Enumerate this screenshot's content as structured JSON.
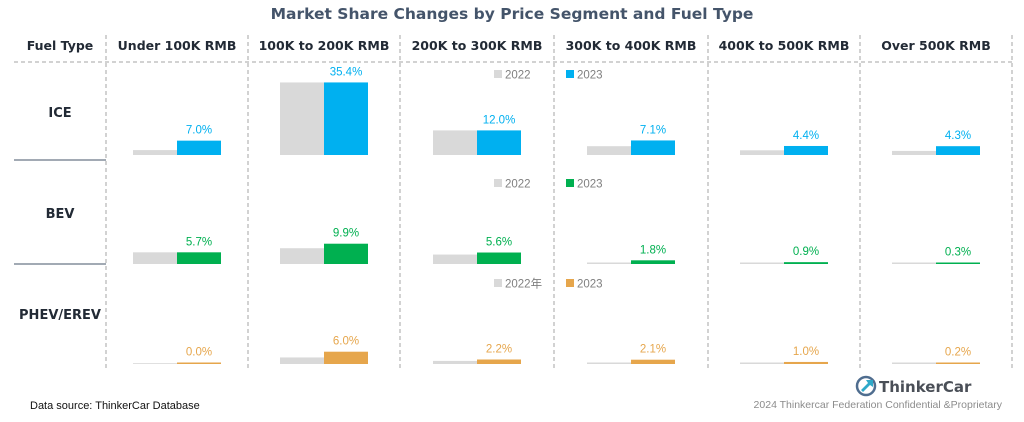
{
  "title": "Market Share Changes by Price Segment and Fuel Type",
  "source": "Data source: ThinkerCar Database",
  "brand": {
    "name": "ThinkerCar",
    "copyright": "2024 Thinkercar Federation Confidential &Proprietary",
    "logo_icon": "thinkercar-logo-icon"
  },
  "colors": {
    "y2022": "#d9d9d9",
    "ICE": "#00b0f0",
    "BEV": "#00b050",
    "PHEV/EREV": "#e6a64c",
    "grid": "#a6a6a6"
  },
  "chart_data": {
    "type": "bar",
    "row_header": "Fuel Type",
    "segments": [
      "Under 100K RMB",
      "100K to 200K RMB",
      "200K to 300K RMB",
      "300K to 400K RMB",
      "400K to 500K RMB",
      "Over 500K RMB"
    ],
    "rows": [
      {
        "fuel": "ICE",
        "legend": [
          "2022",
          "2023"
        ],
        "values_2022": [
          2.4,
          35.4,
          12.0,
          4.3,
          2.3,
          2.0
        ],
        "values_2023": [
          7.0,
          35.4,
          12.0,
          7.1,
          4.4,
          4.3
        ],
        "labels_2023": [
          "7.0%",
          "35.4%",
          "12.0%",
          "7.1%",
          "4.4%",
          "4.3%"
        ]
      },
      {
        "fuel": "BEV",
        "legend": [
          "2022",
          "2023"
        ],
        "values_2022": [
          5.7,
          7.7,
          4.6,
          0.5,
          0.3,
          0.1
        ],
        "values_2023": [
          5.7,
          9.9,
          5.6,
          1.8,
          0.9,
          0.3
        ],
        "labels_2023": [
          "5.7%",
          "9.9%",
          "5.6%",
          "1.8%",
          "0.9%",
          "0.3%"
        ]
      },
      {
        "fuel": "PHEV/EREV",
        "legend": [
          "2022年",
          "2023"
        ],
        "values_2022": [
          0.0,
          3.2,
          1.5,
          0.6,
          0.3,
          0.3
        ],
        "values_2023": [
          0.0,
          6.0,
          2.2,
          2.1,
          1.0,
          0.2
        ],
        "labels_2023": [
          "0.0%",
          "6.0%",
          "2.2%",
          "2.1%",
          "1.0%",
          "0.2%"
        ]
      }
    ]
  }
}
